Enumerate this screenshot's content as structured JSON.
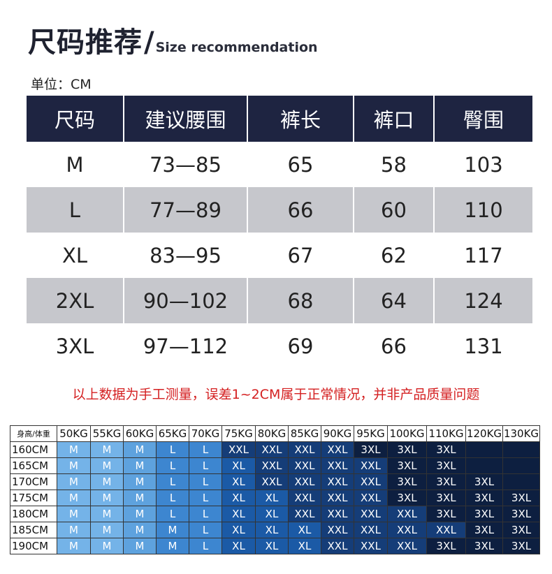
{
  "header": {
    "title_cn": "尺码推荐",
    "slash": "/",
    "title_en": "Size recommendation",
    "unit": "单位：CM"
  },
  "size_table": {
    "headers": [
      "尺码",
      "建议腰围",
      "裤长",
      "裤口",
      "臀围"
    ],
    "rows": [
      [
        "M",
        "73—85",
        "65",
        "58",
        "103"
      ],
      [
        "L",
        "77—89",
        "66",
        "60",
        "110"
      ],
      [
        "XL",
        "83—95",
        "67",
        "62",
        "117"
      ],
      [
        "2XL",
        "90—102",
        "68",
        "64",
        "124"
      ],
      [
        "3XL",
        "97—112",
        "69",
        "66",
        "131"
      ]
    ]
  },
  "note": "以上数据为手工测量，误差1~2CM属于正常情况，并非产品质量问题",
  "recommend_grid": {
    "corner": "身高/体重",
    "weights": [
      "50KG",
      "55KG",
      "60KG",
      "65KG",
      "70KG",
      "75KG",
      "80KG",
      "85KG",
      "90KG",
      "95KG",
      "100KG",
      "110KG",
      "120KG",
      "130KG"
    ],
    "rows": [
      {
        "height": "160CM",
        "sizes": [
          "M",
          "M",
          "M",
          "L",
          "L",
          "XXL",
          "XXL",
          "XXL",
          "XXL",
          "3XL",
          "3XL",
          "3XL",
          "",
          ""
        ]
      },
      {
        "height": "165CM",
        "sizes": [
          "M",
          "M",
          "M",
          "L",
          "L",
          "XL",
          "XXL",
          "XXL",
          "XXL",
          "XXL",
          "3XL",
          "3XL",
          "",
          ""
        ]
      },
      {
        "height": "170CM",
        "sizes": [
          "M",
          "M",
          "M",
          "L",
          "L",
          "XL",
          "XXL",
          "XXL",
          "XXL",
          "XXL",
          "3XL",
          "3XL",
          "3XL",
          ""
        ]
      },
      {
        "height": "175CM",
        "sizes": [
          "M",
          "M",
          "M",
          "L",
          "L",
          "XL",
          "XL",
          "XXL",
          "XXL",
          "XXL",
          "3XL",
          "3XL",
          "3XL",
          "3XL"
        ]
      },
      {
        "height": "180CM",
        "sizes": [
          "M",
          "M",
          "M",
          "L",
          "L",
          "XL",
          "XL",
          "XXL",
          "XXL",
          "XXL",
          "XXL",
          "3XL",
          "3XL",
          "3XL"
        ]
      },
      {
        "height": "185CM",
        "sizes": [
          "M",
          "M",
          "M",
          "M",
          "L",
          "XL",
          "XL",
          "XL",
          "XXL",
          "XXL",
          "XXL",
          "XXL",
          "3XL",
          "3XL"
        ]
      },
      {
        "height": "190CM",
        "sizes": [
          "M",
          "M",
          "M",
          "M",
          "L",
          "XL",
          "XL",
          "XL",
          "XXL",
          "XXL",
          "XXL",
          "3XL",
          "3XL",
          "3XL"
        ]
      }
    ]
  },
  "colors": {
    "header_navy": "#1e2441",
    "alt_row_gray": "#c6c7cc",
    "note_red": "#d41f20"
  }
}
